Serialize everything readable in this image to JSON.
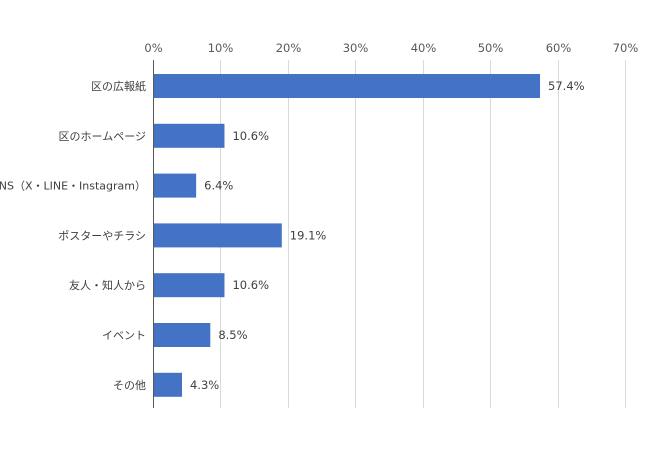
{
  "chart_data": {
    "type": "bar",
    "orientation": "horizontal",
    "categories": [
      "区の広報紙",
      "区のホームページ",
      "SNS（X・LINE・Instagram）",
      "ポスターやチラシ",
      "友人・知人から",
      "イベント",
      "その他"
    ],
    "values": [
      57.4,
      10.6,
      6.4,
      19.1,
      10.6,
      8.5,
      4.3
    ],
    "data_labels": [
      "57.4%",
      "10.6%",
      "6.4%",
      "19.1%",
      "10.6%",
      "8.5%",
      "4.3%"
    ],
    "xlim": [
      0,
      70
    ],
    "xticks": [
      0,
      10,
      20,
      30,
      40,
      50,
      60,
      70
    ],
    "xtick_labels": [
      "0%",
      "10%",
      "20%",
      "30%",
      "40%",
      "50%",
      "60%",
      "70%"
    ],
    "x_axis_position": "top",
    "grid": true,
    "legend": "none",
    "bar_color": "#4472C4",
    "grid_color": "#D9D9D9",
    "axis_color": "#595959"
  }
}
